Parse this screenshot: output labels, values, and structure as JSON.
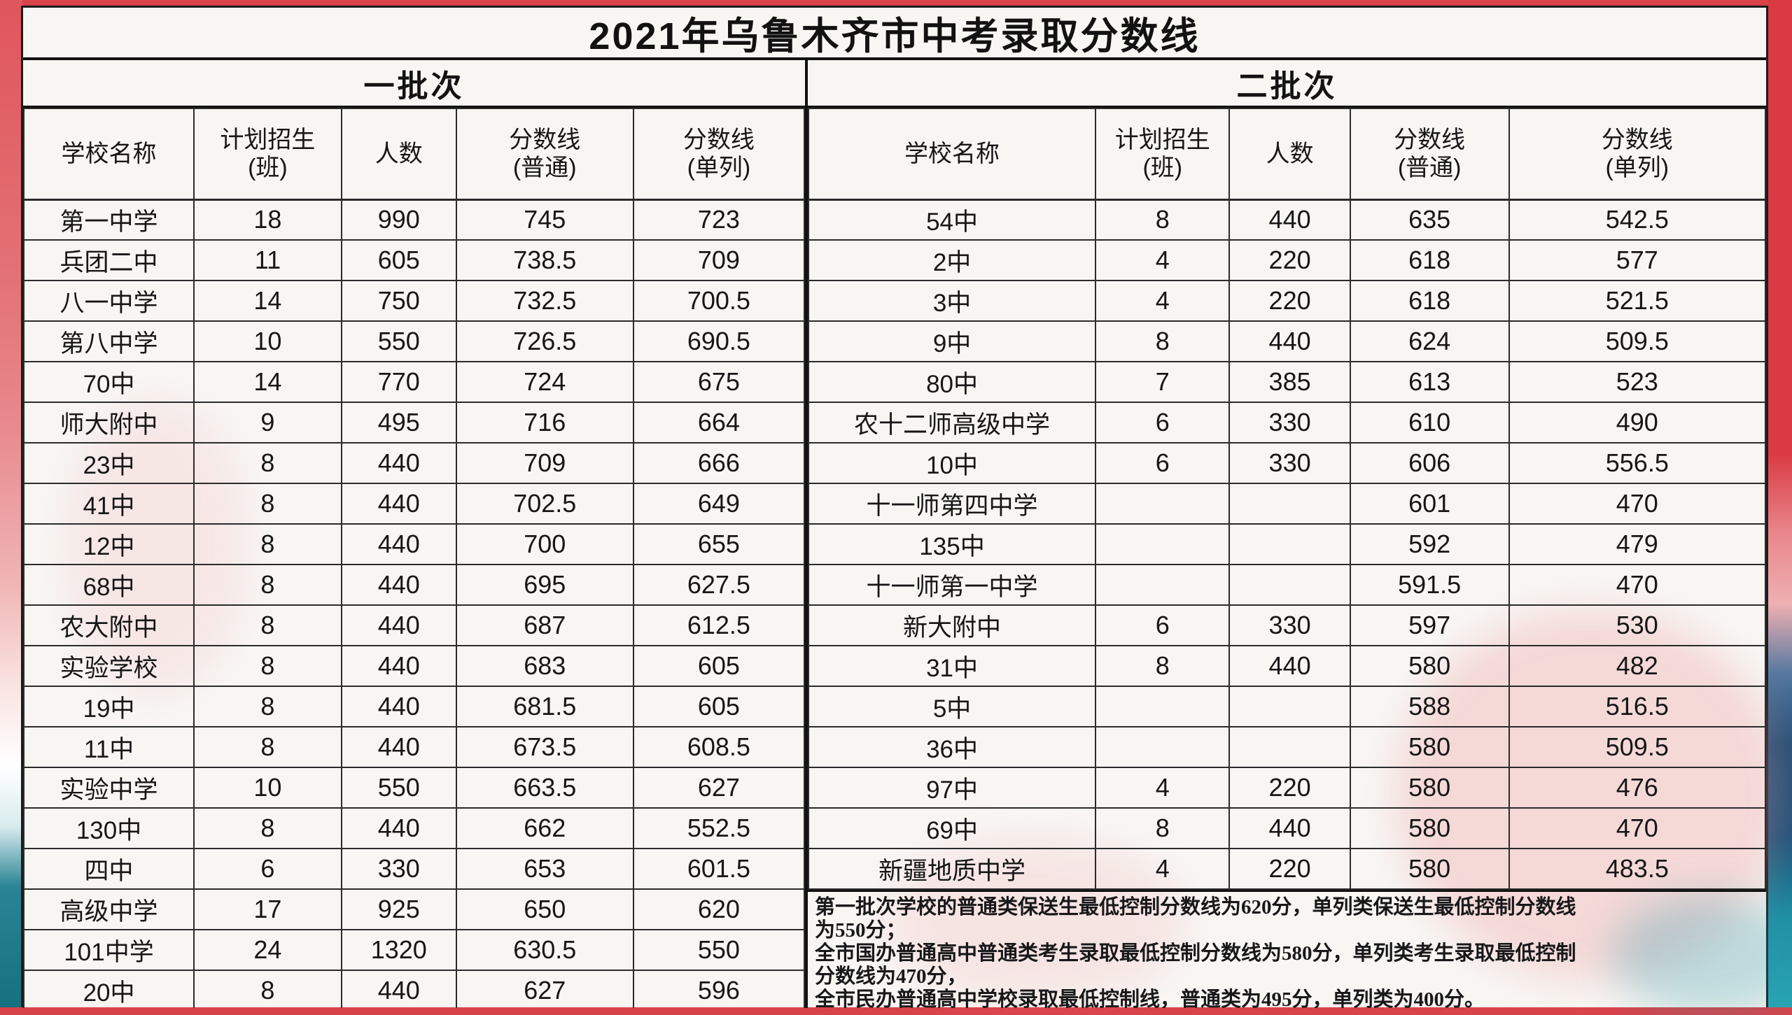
{
  "title": "2021年乌鲁木齐市中考录取分数线",
  "batch1": {
    "band_label": "一批次",
    "headers": [
      "学校名称",
      "计划招生\n(班)",
      "人数",
      "分数线\n(普通)",
      "分数线\n(单列)"
    ],
    "rows": [
      [
        "第一中学",
        "18",
        "990",
        "745",
        "723"
      ],
      [
        "兵团二中",
        "11",
        "605",
        "738.5",
        "709"
      ],
      [
        "八一中学",
        "14",
        "750",
        "732.5",
        "700.5"
      ],
      [
        "第八中学",
        "10",
        "550",
        "726.5",
        "690.5"
      ],
      [
        "70中",
        "14",
        "770",
        "724",
        "675"
      ],
      [
        "师大附中",
        "9",
        "495",
        "716",
        "664"
      ],
      [
        "23中",
        "8",
        "440",
        "709",
        "666"
      ],
      [
        "41中",
        "8",
        "440",
        "702.5",
        "649"
      ],
      [
        "12中",
        "8",
        "440",
        "700",
        "655"
      ],
      [
        "68中",
        "8",
        "440",
        "695",
        "627.5"
      ],
      [
        "农大附中",
        "8",
        "440",
        "687",
        "612.5"
      ],
      [
        "实验学校",
        "8",
        "440",
        "683",
        "605"
      ],
      [
        "19中",
        "8",
        "440",
        "681.5",
        "605"
      ],
      [
        "11中",
        "8",
        "440",
        "673.5",
        "608.5"
      ],
      [
        "实验中学",
        "10",
        "550",
        "663.5",
        "627"
      ],
      [
        "130中",
        "8",
        "440",
        "662",
        "552.5"
      ],
      [
        "四中",
        "6",
        "330",
        "653",
        "601.5"
      ],
      [
        "高级中学",
        "17",
        "925",
        "650",
        "620"
      ],
      [
        "101中学",
        "24",
        "1320",
        "630.5",
        "550"
      ],
      [
        "20中",
        "8",
        "440",
        "627",
        "596"
      ]
    ]
  },
  "batch2": {
    "band_label": "二批次",
    "headers": [
      "学校名称",
      "计划招生\n(班)",
      "人数",
      "分数线\n(普通)",
      "分数线\n(单列)"
    ],
    "rows": [
      [
        "54中",
        "8",
        "440",
        "635",
        "542.5"
      ],
      [
        "2中",
        "4",
        "220",
        "618",
        "577"
      ],
      [
        "3中",
        "4",
        "220",
        "618",
        "521.5"
      ],
      [
        "9中",
        "8",
        "440",
        "624",
        "509.5"
      ],
      [
        "80中",
        "7",
        "385",
        "613",
        "523"
      ],
      [
        "农十二师高级中学",
        "6",
        "330",
        "610",
        "490"
      ],
      [
        "10中",
        "6",
        "330",
        "606",
        "556.5"
      ],
      [
        "十一师第四中学",
        "",
        "",
        "601",
        "470"
      ],
      [
        "135中",
        "",
        "",
        "592",
        "479"
      ],
      [
        "十一师第一中学",
        "",
        "",
        "591.5",
        "470"
      ],
      [
        "新大附中",
        "6",
        "330",
        "597",
        "530"
      ],
      [
        "31中",
        "8",
        "440",
        "580",
        "482"
      ],
      [
        "5中",
        "",
        "",
        "588",
        "516.5"
      ],
      [
        "36中",
        "",
        "",
        "580",
        "509.5"
      ],
      [
        "97中",
        "4",
        "220",
        "580",
        "476"
      ],
      [
        "69中",
        "8",
        "440",
        "580",
        "470"
      ],
      [
        "新疆地质中学",
        "4",
        "220",
        "580",
        "483.5"
      ]
    ],
    "notes_lines": [
      "第一批次学校的普通类保送生最低控制分数线为620分，单列类保送生最低控制分数线",
      "为550分；",
      "全市国办普通高中普通类考生录取最低控制分数线为580分，单列类考生录取最低控制",
      "分数线为470分，",
      "全市民办普通高中学校录取最低控制线，普通类为495分，单列类为400分。"
    ]
  },
  "colors": {
    "poster_red": "#d8434a",
    "poster_pink": "#eb9094",
    "poster_navy": "#15537d",
    "poster_teal": "#2593a4",
    "paper": "#f8f6f3",
    "ink": "#161616"
  }
}
